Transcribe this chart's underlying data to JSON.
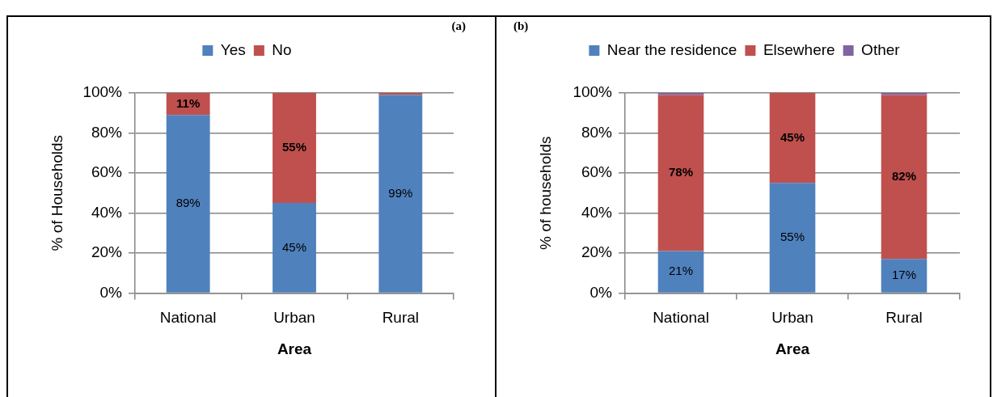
{
  "chart_data": [
    {
      "type": "bar",
      "title": "(a)",
      "categories": [
        "National",
        "Urban",
        "Rural"
      ],
      "series": [
        {
          "name": "Yes",
          "color": "#4f81bd",
          "values": [
            89,
            45,
            99
          ],
          "value_labels": [
            "89%",
            "45%",
            "99%"
          ]
        },
        {
          "name": "No",
          "color": "#c0504d",
          "values": [
            11,
            55,
            1
          ],
          "value_labels": [
            "11%",
            "55%",
            null
          ]
        }
      ],
      "stacked": true,
      "xlabel": "Area",
      "ylabel": "% of Households",
      "ylim": [
        0,
        100
      ],
      "yticks": [
        {
          "value": 0,
          "label": "0%"
        },
        {
          "value": 20,
          "label": "20%"
        },
        {
          "value": 40,
          "label": "40%"
        },
        {
          "value": 60,
          "label": "60%"
        },
        {
          "value": 80,
          "label": "80%"
        },
        {
          "value": 100,
          "label": "100%"
        }
      ],
      "grid": "y",
      "legend": "top"
    },
    {
      "type": "bar",
      "title": "(b)",
      "categories": [
        "National",
        "Urban",
        "Rural"
      ],
      "series": [
        {
          "name": "Near the residence",
          "color": "#4f81bd",
          "values": [
            21,
            55,
            17
          ],
          "value_labels": [
            "21%",
            "55%",
            "17%"
          ]
        },
        {
          "name": "Elsewhere",
          "color": "#c0504d",
          "values": [
            78,
            45,
            82
          ],
          "value_labels": [
            "78%",
            "45%",
            "82%"
          ]
        },
        {
          "name": "Other",
          "color": "#8064a2",
          "values": [
            1,
            0,
            1
          ]
        }
      ],
      "stacked": true,
      "xlabel": "Area",
      "ylabel": "% of households",
      "ylim": [
        0,
        100
      ],
      "yticks": [
        {
          "value": 0,
          "label": "0%"
        },
        {
          "value": 20,
          "label": "20%"
        },
        {
          "value": 40,
          "label": "40%"
        },
        {
          "value": 60,
          "label": "60%"
        },
        {
          "value": 80,
          "label": "80%"
        },
        {
          "value": 100,
          "label": "100%"
        }
      ],
      "grid": "y",
      "legend": "top"
    }
  ]
}
